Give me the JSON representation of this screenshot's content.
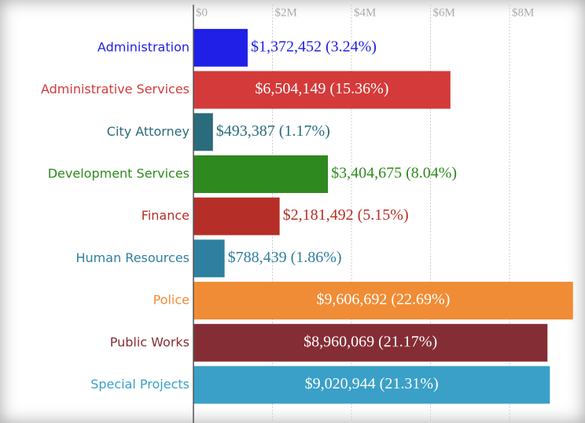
{
  "chart_data": {
    "type": "bar",
    "orientation": "horizontal",
    "categories": [
      "Administration",
      "Administrative Services",
      "City Attorney",
      "Development Services",
      "Finance",
      "Human Resources",
      "Police",
      "Public Works",
      "Special Projects"
    ],
    "values": [
      1372452,
      6504149,
      493387,
      3404675,
      2181492,
      788439,
      9606692,
      8960069,
      9020944
    ],
    "value_labels": [
      "$1,372,452 (3.24%)",
      "$6,504,149 (15.36%)",
      "$493,387 (1.17%)",
      "$3,404,675 (8.04%)",
      "$2,181,492 (5.15%)",
      "$788,439 (1.86%)",
      "$9,606,692 (22.69%)",
      "$8,960,069 (21.17%)",
      "$9,020,944 (21.31%)"
    ],
    "colors": [
      "#1f1fe8",
      "#d43a3a",
      "#2a6b7c",
      "#2e8a1e",
      "#b52e27",
      "#2f7fa0",
      "#f08c35",
      "#852d34",
      "#3aa0c8"
    ],
    "xlim": [
      0,
      9900000
    ],
    "xticks": [
      {
        "value": 0,
        "label": "$0"
      },
      {
        "value": 2000000,
        "label": "$2M"
      },
      {
        "value": 4000000,
        "label": "$4M"
      },
      {
        "value": 6000000,
        "label": "$6M"
      },
      {
        "value": 8000000,
        "label": "$8M"
      }
    ],
    "grid": true
  }
}
